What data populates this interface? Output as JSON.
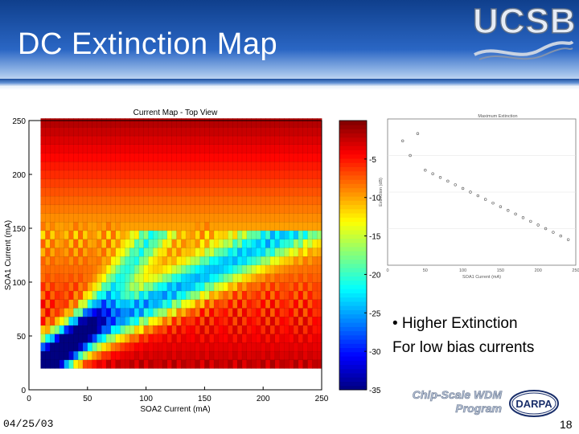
{
  "slide": {
    "title": "DC Extinction Map",
    "logo_text": "UCSB",
    "bullet_line1": "• Higher Extinction",
    "bullet_line2": "For low bias currents",
    "program_line1": "Chip-Scale WDM",
    "program_line2": "Program",
    "darpa_text": "DARPA",
    "date": "04/25/03",
    "page_number": "18"
  },
  "colors": {
    "header_dark": "#0f3f8c",
    "header_light": "#9fc0ea",
    "title_text": "#ffffff"
  },
  "chart_data": [
    {
      "type": "heatmap",
      "title": "Current Map - Top View",
      "xlabel": "SOA2 Current (mA)",
      "ylabel": "SOA1 Current (mA)",
      "xlim": [
        0,
        250
      ],
      "ylim": [
        0,
        250
      ],
      "x_ticks": [
        0,
        50,
        100,
        150,
        200,
        250
      ],
      "y_ticks": [
        0,
        50,
        100,
        150,
        200,
        250
      ],
      "data_x_range": [
        10,
        250
      ],
      "data_y_range": [
        20,
        250
      ],
      "colorbar": {
        "range": [
          -35,
          0
        ],
        "ticks": [
          -5,
          -10,
          -15,
          -20,
          -25,
          -30,
          -35
        ],
        "colormap": "jet"
      },
      "description_of_values": "Extinction (dB). Strongest (most negative, blue) values along a diagonal valley from low bias near (10,20) toward (100,150); ~-1 to -5 dB (dark red) at high SOA1 current."
    },
    {
      "type": "scatter",
      "title": "Maximum Extinction",
      "xlabel": "SOA1 Current (mA)",
      "ylabel": "Extinction (dB)",
      "xlim": [
        0,
        250
      ],
      "ylim": [
        0,
        40
      ],
      "x_ticks": [
        0,
        50,
        100,
        150,
        200,
        250
      ],
      "x": [
        20,
        30,
        40,
        50,
        60,
        70,
        80,
        90,
        100,
        110,
        120,
        130,
        140,
        150,
        160,
        170,
        180,
        190,
        200,
        210,
        220,
        230,
        240
      ],
      "y": [
        34,
        30,
        36,
        26,
        25,
        24,
        23,
        22,
        21,
        20,
        19,
        18,
        17,
        16,
        15,
        14,
        13,
        12,
        11,
        10,
        9,
        8,
        7
      ]
    }
  ]
}
